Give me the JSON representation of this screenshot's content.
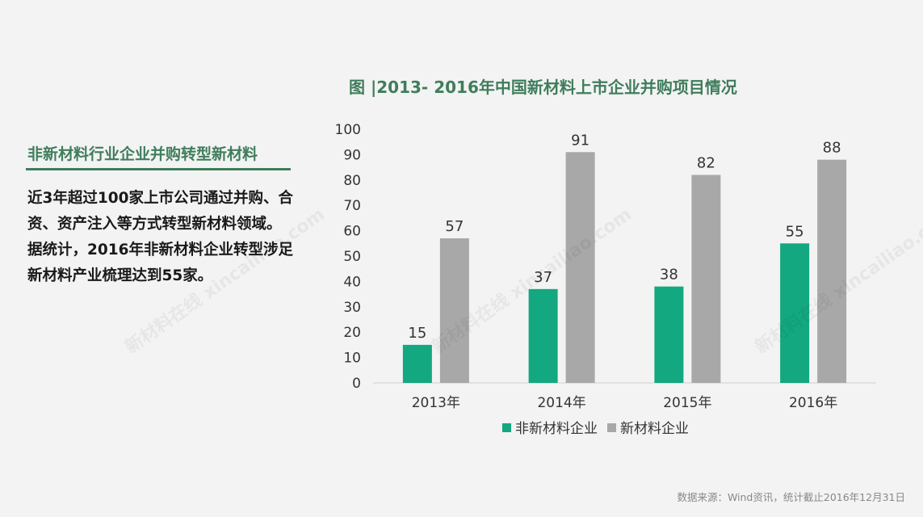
{
  "left_panel": {
    "heading": "非新材料行业企业并购转型新材料",
    "body": "近3年超过100家上市公司通过并购、合资、资产注入等方式转型新材料领域。据统计，2016年非新材料企业转型涉足新材料产业梳理达到55家。"
  },
  "source_note": "数据来源：Wind资讯，统计截止2016年12月31日",
  "watermark_text": "新材料在线 xincailiao.com",
  "colors": {
    "accent": "#3f7d5c",
    "series_non_new": "#13a880",
    "series_new": "#a8a8a8",
    "background": "#f3f3f3"
  },
  "chart_data": {
    "type": "bar",
    "title": "图 |2013- 2016年中国新材料上市企业并购项目情况",
    "categories": [
      "2013年",
      "2014年",
      "2015年",
      "2016年"
    ],
    "series": [
      {
        "name": "非新材料企业",
        "values": [
          15,
          37,
          38,
          55
        ],
        "color": "#13a880"
      },
      {
        "name": "新材料企业",
        "values": [
          57,
          91,
          82,
          88
        ],
        "color": "#a8a8a8"
      }
    ],
    "ylim": [
      0,
      100
    ],
    "yticks": [
      0,
      10,
      20,
      30,
      40,
      50,
      60,
      70,
      80,
      90,
      100
    ],
    "grid": false,
    "legend_position": "bottom"
  }
}
